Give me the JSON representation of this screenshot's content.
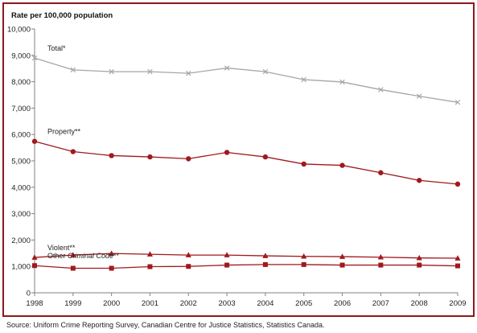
{
  "chart_data": {
    "type": "line",
    "ylabel": "Rate per 100,000 population",
    "ylim": [
      0,
      10000
    ],
    "yticks": [
      "0",
      "1,000",
      "2,000",
      "3,000",
      "4,000",
      "5,000",
      "6,000",
      "7,000",
      "8,000",
      "9,000",
      "10,000"
    ],
    "x": [
      "1998",
      "1999",
      "2000",
      "2001",
      "2002",
      "2003",
      "2004",
      "2005",
      "2006",
      "2007",
      "2008",
      "2009"
    ],
    "grid": false,
    "series": [
      {
        "name": "Total*",
        "name_parts": [
          {
            "text": "Total*",
            "italic": false
          }
        ],
        "color": "#a6a6a6",
        "marker": "x",
        "values": [
          8900,
          8450,
          8380,
          8380,
          8320,
          8520,
          8380,
          8080,
          7990,
          7700,
          7450,
          7220
        ]
      },
      {
        "name": "Property**",
        "name_parts": [
          {
            "text": "Property**",
            "italic": false
          }
        ],
        "color": "#a0191e",
        "marker": "circle",
        "values": [
          5740,
          5350,
          5200,
          5150,
          5080,
          5320,
          5150,
          4880,
          4830,
          4550,
          4260,
          4120
        ]
      },
      {
        "name": "Violent**",
        "name_parts": [
          {
            "text": "Violent**",
            "italic": false
          }
        ],
        "color": "#a0191e",
        "marker": "triangle",
        "values": [
          1340,
          1430,
          1490,
          1460,
          1430,
          1430,
          1400,
          1380,
          1370,
          1350,
          1320,
          1310
        ]
      },
      {
        "name": "Other Criminal Code**",
        "name_parts": [
          {
            "text": "Other ",
            "italic": false
          },
          {
            "text": "Criminal Code",
            "italic": true
          },
          {
            "text": "**",
            "italic": false
          }
        ],
        "color": "#a0191e",
        "marker": "square",
        "values": [
          1030,
          930,
          930,
          990,
          1000,
          1050,
          1070,
          1070,
          1050,
          1050,
          1050,
          1020
        ]
      }
    ]
  },
  "source": "Source:  Uniform Crime Reporting Survey, Canadian Centre for Justice Statistics, Statistics Canada."
}
